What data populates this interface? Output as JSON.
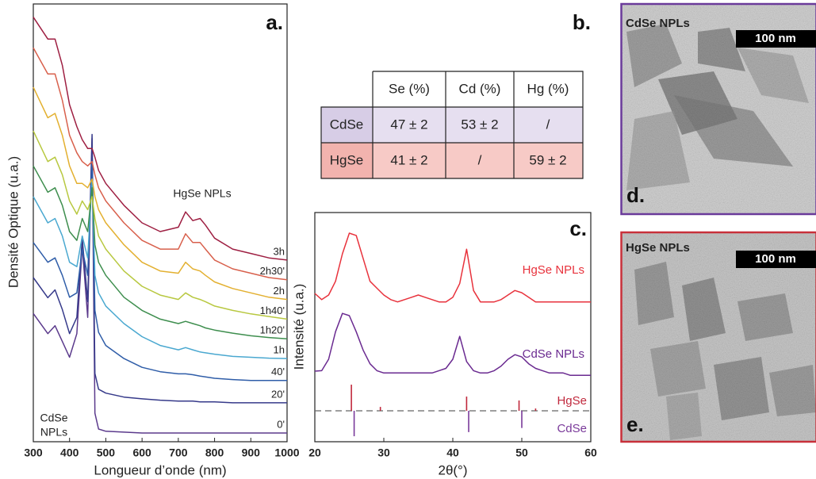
{
  "chart_data": [
    {
      "type": "line",
      "label": "a.",
      "x_label": "Longueur d’onde (nm)",
      "y_label": "Densité Optique (u.a.)",
      "xlim": [
        300,
        1000
      ],
      "xticks": [
        300,
        400,
        500,
        600,
        700,
        800,
        900,
        1000
      ],
      "ylim": [
        0,
        100
      ],
      "annotations": [
        "HgSe NPLs",
        "CdSe",
        "NPLs"
      ],
      "x": [
        300,
        340,
        360,
        380,
        400,
        420,
        435,
        450,
        462,
        470,
        480,
        500,
        550,
        600,
        650,
        700,
        720,
        740,
        760,
        775,
        800,
        850,
        900,
        950,
        1000
      ],
      "series": [
        {
          "name": "0'",
          "color": "#5b3a8c",
          "values": [
            29.3,
            24.7,
            26.5,
            22.9,
            19.3,
            24.7,
            44.7,
            28.4,
            69.3,
            6.5,
            2.9,
            2.4,
            2.2,
            2,
            2,
            2,
            2,
            2,
            2,
            2,
            2,
            2,
            2,
            2,
            2
          ]
        },
        {
          "name": "20'",
          "color": "#363a8a",
          "values": [
            37.5,
            32.9,
            34.7,
            30.2,
            24.7,
            28.4,
            46.5,
            32,
            70.2,
            15.6,
            12,
            11.1,
            10.2,
            9.8,
            9.5,
            9.3,
            9.3,
            9.3,
            9.1,
            9.1,
            9.1,
            8.9,
            8.9,
            8.9,
            8.9
          ]
        },
        {
          "name": "40'",
          "color": "#2f5da8",
          "values": [
            45.5,
            41,
            42,
            38,
            33,
            34,
            44,
            38,
            64,
            30,
            25,
            22,
            19,
            17,
            16,
            15.5,
            15.5,
            15.3,
            15,
            14.8,
            14.5,
            14.2,
            14,
            14,
            14
          ]
        },
        {
          "name": "1h",
          "color": "#4aa8d0",
          "values": [
            56,
            50,
            51,
            47,
            41,
            40,
            47,
            42,
            60,
            38,
            34,
            31,
            27,
            24,
            22,
            21,
            21.5,
            21,
            20.5,
            20.3,
            20,
            19.5,
            19.3,
            19.1,
            19
          ]
        },
        {
          "name": "1h20'",
          "color": "#3e8e4e",
          "values": [
            63,
            57,
            58,
            54,
            48,
            46,
            51,
            48,
            58,
            45,
            41,
            38,
            33,
            30,
            28,
            27,
            27.5,
            27,
            26.5,
            26,
            25.5,
            24.8,
            24.2,
            23.8,
            23.5
          ]
        },
        {
          "name": "1h40'",
          "color": "#b8c840",
          "values": [
            71,
            64,
            65,
            61,
            55,
            52,
            55,
            53,
            56,
            51,
            47,
            44,
            39,
            35.5,
            33.5,
            32.5,
            34,
            33,
            32.5,
            32,
            31,
            30,
            29.2,
            28.6,
            28
          ]
        },
        {
          "name": "2h",
          "color": "#e3b030",
          "values": [
            81,
            74,
            75,
            70,
            63,
            59,
            59,
            58,
            60,
            56,
            53,
            50,
            45,
            41,
            39,
            38.5,
            41,
            39.5,
            39,
            38,
            36.5,
            35,
            34,
            33,
            32.5
          ]
        },
        {
          "name": "2h30'",
          "color": "#d8604c",
          "values": [
            90,
            84,
            84,
            78,
            70,
            66,
            64,
            63,
            64,
            61,
            58,
            55,
            50,
            46,
            44,
            44,
            47.5,
            45.5,
            45.5,
            44,
            41.5,
            39.5,
            38.5,
            37.5,
            37
          ]
        },
        {
          "name": "3h",
          "color": "#9e1f42",
          "values": [
            97,
            92,
            92,
            86,
            77,
            72,
            69,
            67,
            67,
            65,
            62,
            59,
            54,
            50,
            48,
            49,
            52.5,
            50.5,
            51,
            49.5,
            46.5,
            44,
            43,
            42,
            41.5
          ]
        }
      ]
    },
    {
      "type": "line",
      "label": "c.",
      "x_label": "2θ(°)",
      "y_label": "Intensité (u.a.)",
      "xlim": [
        20,
        60
      ],
      "xticks": [
        20,
        30,
        40,
        50,
        60
      ],
      "ylim": [
        0,
        100
      ],
      "x": [
        20,
        21,
        22,
        23,
        24,
        25,
        26,
        27,
        28,
        29,
        30,
        31,
        32,
        33,
        34,
        35,
        36,
        37,
        38,
        39,
        40,
        41,
        42,
        43,
        44,
        45,
        46,
        47,
        48,
        49,
        50,
        51,
        52,
        53,
        54,
        55,
        56,
        57,
        58,
        59,
        60
      ],
      "series": [
        {
          "name": "HgSe NPLs",
          "color": "#e8323c",
          "values": [
            64.7,
            62,
            64,
            70,
            82,
            91,
            90,
            80,
            70,
            67,
            64,
            62,
            61,
            62,
            63,
            64,
            63,
            62,
            61,
            61,
            63,
            69,
            84,
            66,
            61,
            61,
            61,
            62,
            64,
            66,
            65,
            63,
            61,
            61,
            61,
            61,
            61,
            61,
            61,
            61,
            61
          ]
        },
        {
          "name": "CdSe NPLs",
          "color": "#6a2a90",
          "values": [
            30.8,
            31,
            36,
            48,
            56,
            55,
            48,
            40,
            34,
            31,
            30,
            30,
            30,
            30,
            30,
            30,
            30,
            30,
            31,
            32,
            36,
            46,
            35,
            31,
            30,
            30,
            31,
            33,
            36,
            38,
            37,
            34,
            32,
            31,
            30,
            30,
            30,
            29,
            29,
            29,
            29
          ]
        }
      ],
      "ref_baseline": 13.5,
      "references": [
        {
          "name": "HgSe",
          "color": "#c0283c",
          "x": [
            25.3,
            29.5,
            42,
            49.6,
            52
          ],
          "values": [
            24.9,
            15.2,
            19.7,
            18,
            14.5
          ]
        },
        {
          "name": "CdSe",
          "color": "#7a3a9a",
          "x": [
            25.7,
            42.3,
            50
          ],
          "values": [
            2.4,
            4.2,
            6
          ]
        }
      ]
    }
  ],
  "table": {
    "label": "b.",
    "header": [
      "Se (%)",
      "Cd (%)",
      "Hg (%)"
    ],
    "rows": [
      [
        "CdSe",
        "47 ± 2",
        "53 ± 2",
        "/"
      ],
      [
        "HgSe",
        "41 ± 2",
        "/",
        "59 ± 2"
      ]
    ]
  },
  "images": [
    {
      "title": "CdSe NPLs",
      "scale_bar": "100 nm",
      "label": "d."
    },
    {
      "title": "HgSe NPLs",
      "scale_bar": "100 nm",
      "label": "e."
    }
  ]
}
